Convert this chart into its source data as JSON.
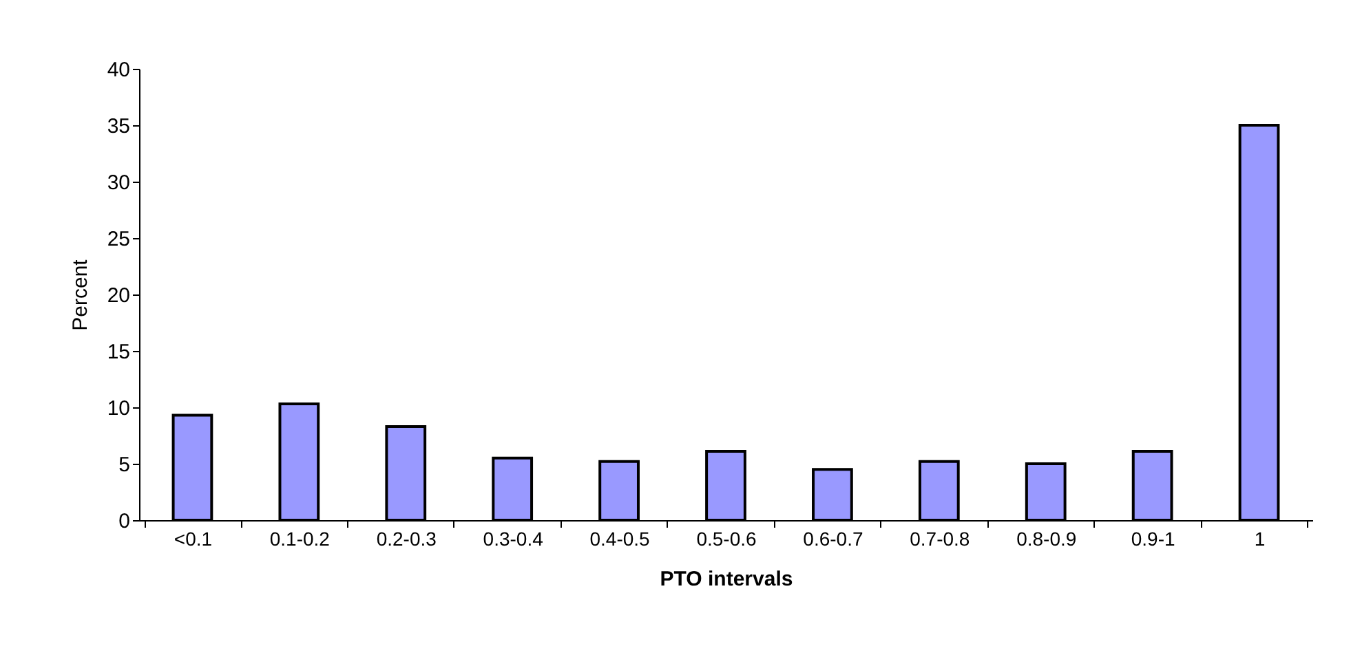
{
  "chart_data": {
    "type": "bar",
    "xlabel": "PTO intervals",
    "ylabel": "Percent",
    "categories": [
      "<0.1",
      "0.1-0.2",
      "0.2-0.3",
      "0.3-0.4",
      "0.4-0.5",
      "0.5-0.6",
      "0.6-0.7",
      "0.7-0.8",
      "0.8-0.9",
      "0.9-1",
      "1"
    ],
    "values": [
      9.3,
      10.3,
      8.3,
      5.5,
      5.2,
      6.1,
      4.5,
      5.2,
      5.0,
      6.1,
      35.0
    ],
    "color": "#9999ff",
    "ylim": [
      0,
      40
    ],
    "yticks": [
      0,
      5,
      10,
      15,
      20,
      25,
      30,
      35,
      40
    ],
    "grid": false
  }
}
